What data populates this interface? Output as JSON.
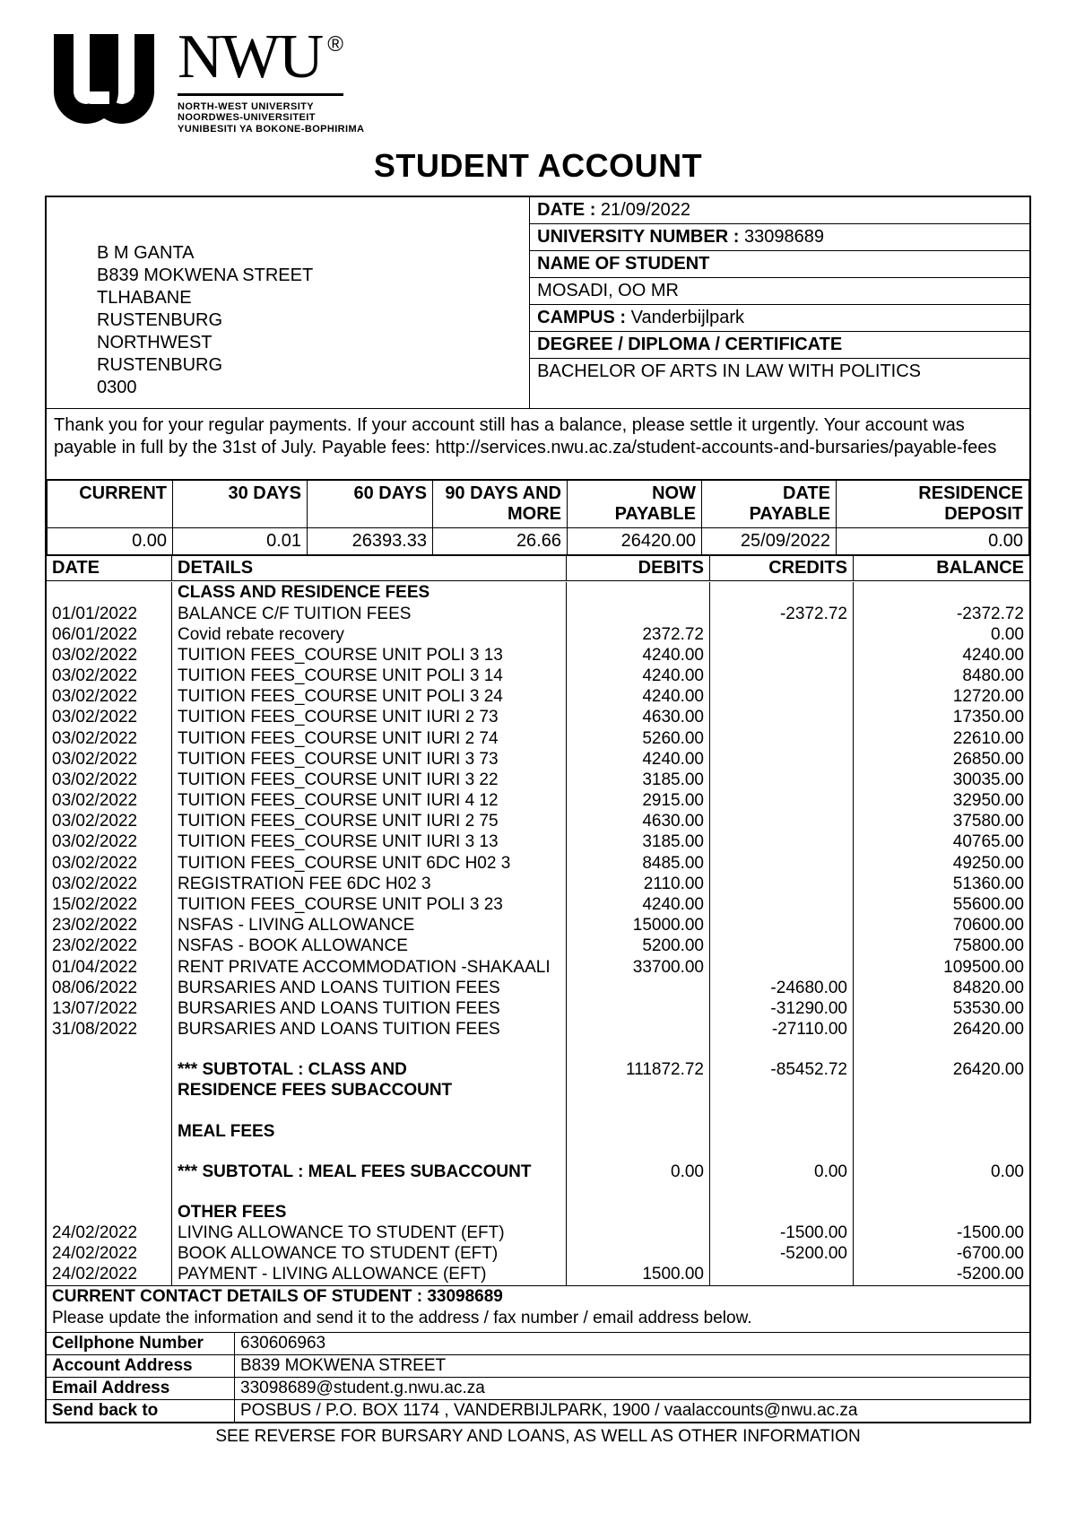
{
  "logo": {
    "brand": "NWU",
    "reg": "®",
    "tagline1": "NORTH-WEST UNIVERSITY",
    "tagline2": "NOORDWES-UNIVERSITEIT",
    "tagline3": "YUNIBESITI YA BOKONE-BOPHIRIMA"
  },
  "title": "STUDENT ACCOUNT",
  "address": {
    "line1": "B M GANTA",
    "line2": "B839 MOKWENA STREET",
    "line3": "TLHABANE",
    "line4": "RUSTENBURG",
    "line5": "NORTHWEST",
    "line6": "RUSTENBURG",
    "line7": "0300"
  },
  "meta": {
    "date_label": "DATE :",
    "date_value": "21/09/2022",
    "univ_num_label": "UNIVERSITY NUMBER :",
    "univ_num_value": "33098689",
    "name_label": "NAME OF STUDENT",
    "name_value": "MOSADI, OO MR",
    "campus_label": "CAMPUS :",
    "campus_value": "Vanderbijlpark",
    "degree_label": "DEGREE / DIPLOMA / CERTIFICATE",
    "degree_value": "BACHELOR OF ARTS IN LAW WITH POLITICS"
  },
  "message": "Thank you for your regular payments. If your account still has a balance, please settle it urgently. Your account was payable in full by the 31st of July. Payable fees: http://services.nwu.ac.za/student-accounts-and-bursaries/payable-fees",
  "summary": {
    "headers": {
      "current": "CURRENT",
      "d30": "30 DAYS",
      "d60": "60 DAYS",
      "d90": "90 DAYS AND MORE",
      "now": "NOW PAYABLE",
      "date": "DATE PAYABLE",
      "res": "RESIDENCE DEPOSIT"
    },
    "values": {
      "current": "0.00",
      "d30": "0.01",
      "d60": "26393.33",
      "d90": "26.66",
      "now": "26420.00",
      "date": "25/09/2022",
      "res": "0.00"
    }
  },
  "ledger_headers": {
    "date": "DATE",
    "details": "DETAILS",
    "debits": "DEBITS",
    "credits": "CREDITS",
    "balance": "BALANCE"
  },
  "section1_title": "CLASS AND RESIDENCE FEES",
  "section1_rows": [
    {
      "date": "01/01/2022",
      "det": "BALANCE C/F TUITION FEES",
      "deb": "",
      "cred": "-2372.72",
      "bal": "-2372.72"
    },
    {
      "date": "06/01/2022",
      "det": "Covid rebate recovery",
      "deb": "2372.72",
      "cred": "",
      "bal": "0.00"
    },
    {
      "date": "03/02/2022",
      "det": "TUITION FEES_COURSE UNIT POLI 3 13",
      "deb": "4240.00",
      "cred": "",
      "bal": "4240.00"
    },
    {
      "date": "03/02/2022",
      "det": "TUITION FEES_COURSE UNIT POLI 3 14",
      "deb": "4240.00",
      "cred": "",
      "bal": "8480.00"
    },
    {
      "date": "03/02/2022",
      "det": "TUITION FEES_COURSE UNIT POLI 3 24",
      "deb": "4240.00",
      "cred": "",
      "bal": "12720.00"
    },
    {
      "date": "03/02/2022",
      "det": "TUITION FEES_COURSE UNIT IURI 2 73",
      "deb": "4630.00",
      "cred": "",
      "bal": "17350.00"
    },
    {
      "date": "03/02/2022",
      "det": "TUITION FEES_COURSE UNIT IURI 2 74",
      "deb": "5260.00",
      "cred": "",
      "bal": "22610.00"
    },
    {
      "date": "03/02/2022",
      "det": "TUITION FEES_COURSE UNIT IURI 3 73",
      "deb": "4240.00",
      "cred": "",
      "bal": "26850.00"
    },
    {
      "date": "03/02/2022",
      "det": "TUITION FEES_COURSE UNIT IURI 3 22",
      "deb": "3185.00",
      "cred": "",
      "bal": "30035.00"
    },
    {
      "date": "03/02/2022",
      "det": "TUITION FEES_COURSE UNIT IURI 4 12",
      "deb": "2915.00",
      "cred": "",
      "bal": "32950.00"
    },
    {
      "date": "03/02/2022",
      "det": "TUITION FEES_COURSE UNIT IURI 2 75",
      "deb": "4630.00",
      "cred": "",
      "bal": "37580.00"
    },
    {
      "date": "03/02/2022",
      "det": "TUITION FEES_COURSE UNIT IURI 3 13",
      "deb": "3185.00",
      "cred": "",
      "bal": "40765.00"
    },
    {
      "date": "03/02/2022",
      "det": "TUITION FEES_COURSE UNIT 6DC H02 3",
      "deb": "8485.00",
      "cred": "",
      "bal": "49250.00"
    },
    {
      "date": "03/02/2022",
      "det": "REGISTRATION FEE 6DC H02 3",
      "deb": "2110.00",
      "cred": "",
      "bal": "51360.00"
    },
    {
      "date": "15/02/2022",
      "det": "TUITION FEES_COURSE UNIT POLI 3 23",
      "deb": "4240.00",
      "cred": "",
      "bal": "55600.00"
    },
    {
      "date": "23/02/2022",
      "det": "NSFAS - LIVING ALLOWANCE",
      "deb": "15000.00",
      "cred": "",
      "bal": "70600.00"
    },
    {
      "date": "23/02/2022",
      "det": "NSFAS - BOOK ALLOWANCE",
      "deb": "5200.00",
      "cred": "",
      "bal": "75800.00"
    },
    {
      "date": "01/04/2022",
      "det": "RENT PRIVATE ACCOMMODATION -SHAKAALI",
      "deb": "33700.00",
      "cred": "",
      "bal": "109500.00"
    },
    {
      "date": "08/06/2022",
      "det": "BURSARIES AND LOANS TUITION FEES",
      "deb": "",
      "cred": "-24680.00",
      "bal": "84820.00"
    },
    {
      "date": "13/07/2022",
      "det": "BURSARIES AND LOANS TUITION FEES",
      "deb": "",
      "cred": "-31290.00",
      "bal": "53530.00"
    },
    {
      "date": "31/08/2022",
      "det": "BURSARIES AND LOANS TUITION FEES",
      "deb": "",
      "cred": "-27110.00",
      "bal": "26420.00"
    }
  ],
  "subtotal1": {
    "label_a": "*** SUBTOTAL : CLASS AND",
    "label_b": "RESIDENCE FEES SUBACCOUNT",
    "deb": "111872.72",
    "cred": "-85452.72",
    "bal": "26420.00"
  },
  "section2_title": "MEAL FEES",
  "subtotal2": {
    "label": "*** SUBTOTAL : MEAL FEES SUBACCOUNT",
    "deb": "0.00",
    "cred": "0.00",
    "bal": "0.00"
  },
  "section3_title": "OTHER FEES",
  "section3_rows": [
    {
      "date": "24/02/2022",
      "det": "LIVING ALLOWANCE TO STUDENT (EFT)",
      "deb": "",
      "cred": "-1500.00",
      "bal": "-1500.00"
    },
    {
      "date": "24/02/2022",
      "det": "BOOK ALLOWANCE TO STUDENT (EFT)",
      "deb": "",
      "cred": "-5200.00",
      "bal": "-6700.00"
    },
    {
      "date": "24/02/2022",
      "det": "PAYMENT - LIVING ALLOWANCE (EFT)",
      "deb": "1500.00",
      "cred": "",
      "bal": "-5200.00"
    }
  ],
  "contact": {
    "header_label": "CURRENT CONTACT DETAILS OF STUDENT :",
    "header_value": "33098689",
    "note": "Please update the information and send it to the address / fax number / email address below.",
    "rows": [
      {
        "label": "Cellphone Number",
        "value": "630606963"
      },
      {
        "label": "Account Address",
        "value": "B839 MOKWENA STREET"
      },
      {
        "label": "Email Address",
        "value": "33098689@student.g.nwu.ac.za"
      },
      {
        "label": "Send back to",
        "value": "POSBUS / P.O. BOX 1174 , VANDERBIJLPARK, 1900 / vaalaccounts@nwu.ac.za"
      }
    ]
  },
  "footer": "SEE REVERSE FOR BURSARY AND LOANS, AS WELL AS OTHER INFORMATION"
}
